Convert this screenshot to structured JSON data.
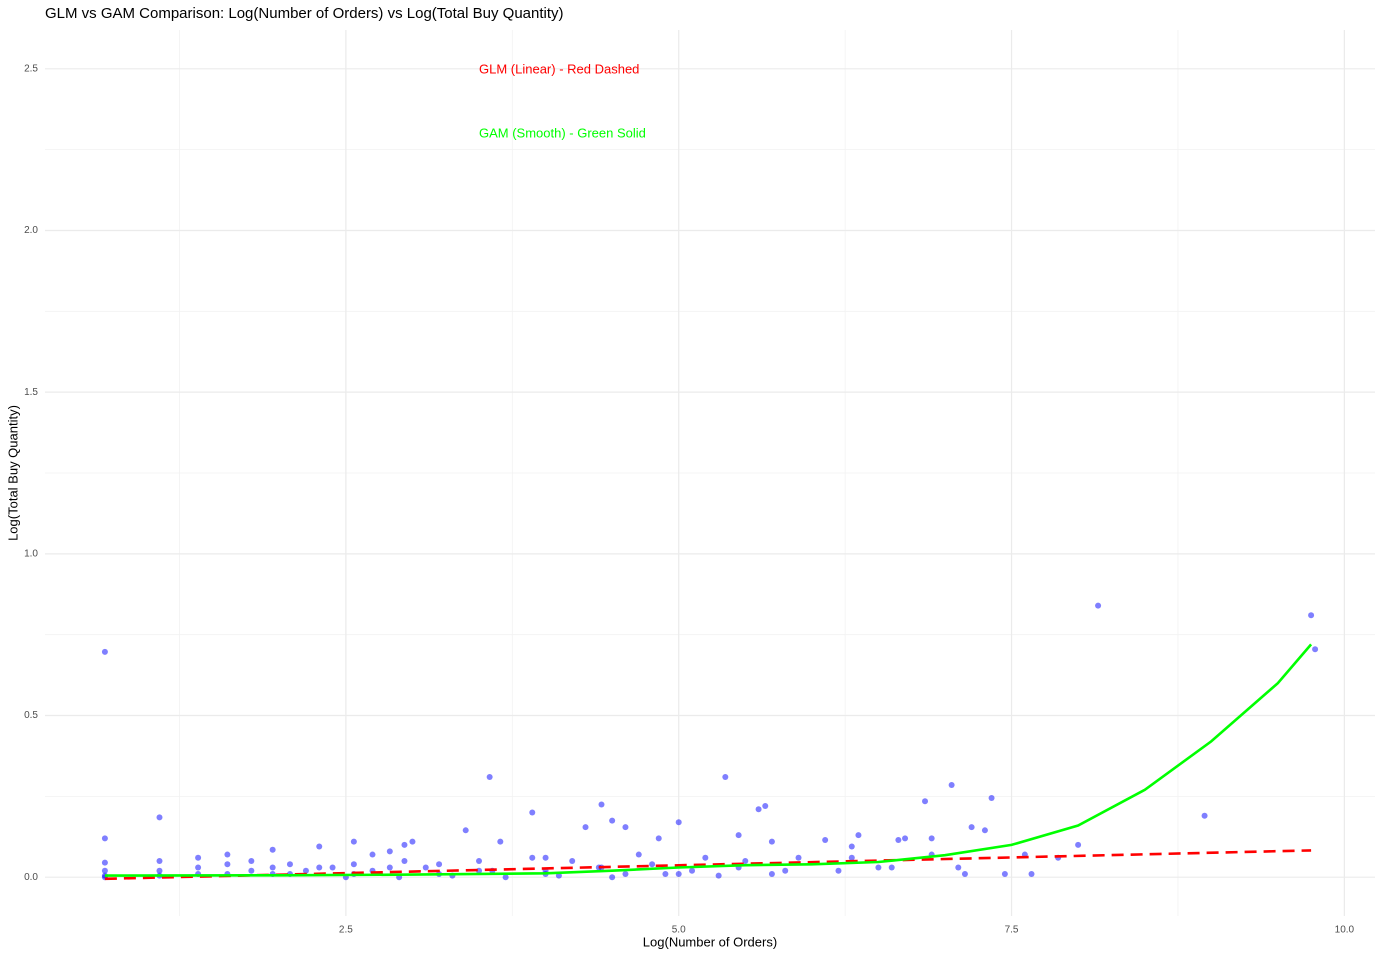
{
  "chart_data": {
    "type": "scatter",
    "title": "GLM vs GAM Comparison: Log(Number of Orders) vs Log(Total Buy Quantity)",
    "x_label": "Log(Number of Orders)",
    "y_label": "Log(Total Buy Quantity)",
    "xlim": [
      0.24,
      10.23
    ],
    "ylim": [
      -0.12,
      2.62
    ],
    "xticks": [
      2.5,
      {
        "value": 5,
        "label": "5.0"
      },
      7.5,
      {
        "value": 10,
        "label": "10.0"
      }
    ],
    "yticks": [
      {
        "value": 0,
        "label": "0.0"
      },
      0.5,
      {
        "value": 1,
        "label": "1.0"
      },
      1.5,
      {
        "value": 2,
        "label": "2.0"
      },
      2.5
    ],
    "grid": true,
    "annotations": [
      {
        "text": "GLM (Linear) - Red Dashed",
        "color": "#ff0000"
      },
      {
        "text": "GAM (Smooth) - Green Solid",
        "color": "#00ff00"
      }
    ],
    "series": [
      {
        "type": "scatter",
        "color": "#0000ff",
        "x": [
          0.69,
          0.69,
          0.69,
          0.69,
          0.69,
          0.69,
          1.1,
          1.1,
          1.1,
          1.1,
          1.39,
          1.39,
          1.39,
          1.61,
          1.61,
          1.61,
          1.79,
          1.79,
          1.95,
          1.95,
          1.95,
          2.08,
          2.08,
          2.2,
          2.3,
          2.3,
          2.4,
          2.56,
          2.56,
          2.56,
          2.7,
          2.7,
          2.83,
          2.83,
          2.94,
          2.94,
          3.0,
          3.1,
          3.2,
          3.4,
          3.5,
          3.5,
          3.58,
          3.66,
          3.9,
          3.9,
          4.0,
          4.0,
          4.2,
          4.3,
          4.42,
          4.42,
          4.5,
          4.6,
          4.6,
          4.7,
          4.85,
          5.0,
          5.0,
          5.2,
          5.35,
          5.45,
          5.45,
          5.6,
          5.65,
          5.7,
          5.7,
          5.9,
          6.1,
          6.3,
          6.3,
          6.35,
          6.5,
          6.65,
          6.7,
          6.85,
          6.9,
          6.9,
          7.05,
          7.1,
          7.15,
          7.2,
          7.3,
          7.35,
          7.45,
          7.6,
          7.65,
          7.85,
          8.0,
          8.15,
          8.95,
          9.75,
          9.78,
          2.5,
          2.9,
          3.3,
          3.7,
          4.1,
          4.5,
          4.9,
          5.3,
          5.8,
          6.2,
          6.6,
          3.2,
          3.6,
          4.0,
          4.4,
          4.8,
          5.1,
          5.5
        ],
        "values": [
          0.697,
          0.12,
          0.045,
          0.02,
          0.005,
          0,
          0.185,
          0.05,
          0.02,
          0.005,
          0.06,
          0.03,
          0.01,
          0.07,
          0.04,
          0.01,
          0.05,
          0.02,
          0.085,
          0.03,
          0.01,
          0.04,
          0.01,
          0.02,
          0.095,
          0.03,
          0.03,
          0.11,
          0.04,
          0.01,
          0.07,
          0.02,
          0.08,
          0.03,
          0.1,
          0.05,
          0.11,
          0.03,
          0.04,
          0.145,
          0.05,
          0.02,
          0.31,
          0.11,
          0.2,
          0.06,
          0.06,
          0.02,
          0.05,
          0.155,
          0.225,
          0.03,
          0.175,
          0.155,
          0.01,
          0.07,
          0.12,
          0.17,
          0.01,
          0.06,
          0.31,
          0.13,
          0.03,
          0.21,
          0.22,
          0.11,
          0.01,
          0.06,
          0.115,
          0.095,
          0.06,
          0.13,
          0.03,
          0.115,
          0.12,
          0.235,
          0.12,
          0.07,
          0.285,
          0.03,
          0.01,
          0.155,
          0.145,
          0.245,
          0.01,
          0.07,
          0.01,
          0.06,
          0.1,
          0.84,
          0.19,
          0.81,
          0.705,
          0,
          0,
          0.005,
          0,
          0.005,
          0,
          0.01,
          0.005,
          0.02,
          0.02,
          0.03,
          0.01,
          0.02,
          0.01,
          0.03,
          0.04,
          0.02,
          0.05
        ]
      },
      {
        "type": "line",
        "color": "#ff0000",
        "dash": true,
        "x": [
          0.69,
          9.75
        ],
        "values": [
          -0.005,
          0.083
        ]
      },
      {
        "type": "line",
        "color": "#00ff00",
        "dash": false,
        "x": [
          0.69,
          2,
          3,
          4,
          4.5,
          5,
          5.5,
          6,
          6.5,
          7,
          7.5,
          8,
          8.5,
          9,
          9.5,
          9.75
        ],
        "values": [
          0.005,
          0.006,
          0.008,
          0.012,
          0.02,
          0.03,
          0.037,
          0.04,
          0.047,
          0.068,
          0.1,
          0.16,
          0.27,
          0.42,
          0.6,
          0.72
        ]
      }
    ]
  }
}
